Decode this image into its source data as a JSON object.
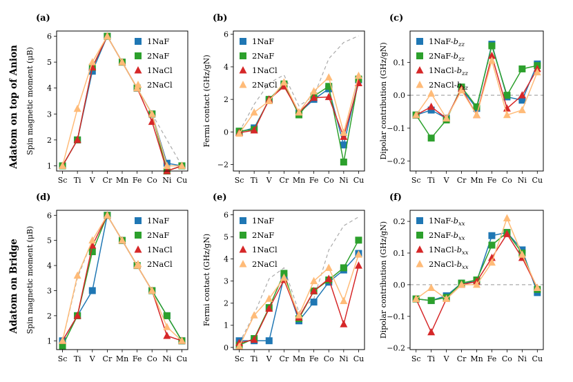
{
  "figure": {
    "row_labels": [
      "Adatom on top of Anion",
      "Adatom on Bridge"
    ],
    "colors": {
      "NaF1": "#1f77b4",
      "NaF2": "#2ca02c",
      "NaCl1": "#d62728",
      "NaCl2": "#ffbb78",
      "reference": "#aaaaaa"
    }
  },
  "chart_data": [
    {
      "id": "a",
      "panel_label": "(a)",
      "type": "line",
      "xlabel": "",
      "ylabel": "Spin magnetic moment (μB)",
      "ylim": [
        0.8,
        6.2
      ],
      "yticks": [
        1,
        2,
        3,
        4,
        5,
        6
      ],
      "ytick_labels": [
        "1",
        "2",
        "3",
        "4",
        "5",
        "6"
      ],
      "categories": [
        "Sc",
        "Ti",
        "V",
        "Cr",
        "Mn",
        "Fe",
        "Co",
        "Ni",
        "Cu"
      ],
      "legend": [
        "1NaF",
        "2NaF",
        "1NaCl",
        "2NaCl"
      ],
      "legend_position": "top-right",
      "reference": {
        "x": [
          6,
          7,
          8
        ],
        "values": [
          3.0,
          2.0,
          1.0
        ]
      },
      "series": [
        {
          "name": "1NaF",
          "marker": "square",
          "color": "#1f77b4",
          "values": [
            1.0,
            2.0,
            4.65,
            6.0,
            5.0,
            4.0,
            3.0,
            1.1,
            1.0
          ]
        },
        {
          "name": "2NaF",
          "marker": "square",
          "color": "#2ca02c",
          "values": [
            1.0,
            2.0,
            4.8,
            6.0,
            5.0,
            4.0,
            3.0,
            0.8,
            1.0
          ]
        },
        {
          "name": "1NaCl",
          "marker": "triangle",
          "color": "#d62728",
          "values": [
            1.0,
            2.0,
            4.8,
            6.0,
            5.0,
            4.0,
            2.7,
            0.8,
            1.0
          ]
        },
        {
          "name": "2NaCl",
          "marker": "triangle",
          "color": "#ffbb78",
          "values": [
            1.0,
            3.2,
            5.0,
            6.0,
            5.0,
            4.0,
            3.0,
            1.0,
            1.0
          ]
        }
      ]
    },
    {
      "id": "b",
      "panel_label": "(b)",
      "type": "line",
      "xlabel": "",
      "ylabel": "Fermi contact (GHz/gN)",
      "ylim": [
        -2.4,
        6.2
      ],
      "yticks": [
        -2,
        0,
        2,
        4,
        6
      ],
      "ytick_labels": [
        "−2",
        "0",
        "2",
        "4",
        "6"
      ],
      "categories": [
        "Sc",
        "Ti",
        "V",
        "Cr",
        "Mn",
        "Fe",
        "Co",
        "Ni",
        "Cu"
      ],
      "legend": [
        "1NaF",
        "2NaF",
        "1NaCl",
        "2NaCl"
      ],
      "legend_position": "top-left",
      "reference": {
        "x": [
          0,
          1,
          2,
          3,
          4,
          5,
          6,
          7,
          8
        ],
        "values": [
          0.0,
          1.7,
          3.0,
          3.5,
          1.6,
          2.2,
          4.5,
          5.5,
          5.9
        ]
      },
      "series": [
        {
          "name": "1NaF",
          "marker": "square",
          "color": "#1f77b4",
          "values": [
            0.0,
            0.25,
            1.95,
            2.9,
            1.15,
            2.0,
            2.65,
            -0.8,
            3.2
          ]
        },
        {
          "name": "2NaF",
          "marker": "square",
          "color": "#2ca02c",
          "values": [
            0.05,
            0.15,
            2.0,
            2.95,
            1.05,
            2.2,
            2.8,
            -1.85,
            3.25
          ]
        },
        {
          "name": "1NaCl",
          "marker": "triangle",
          "color": "#d62728",
          "values": [
            -0.05,
            0.1,
            2.0,
            2.8,
            1.2,
            2.1,
            2.15,
            -0.3,
            3.0
          ]
        },
        {
          "name": "2NaCl",
          "marker": "triangle",
          "color": "#ffbb78",
          "values": [
            -0.1,
            1.2,
            1.9,
            3.05,
            1.2,
            2.5,
            3.35,
            -0.05,
            3.45
          ]
        }
      ]
    },
    {
      "id": "c",
      "panel_label": "(c)",
      "type": "line",
      "xlabel": "",
      "ylabel": "Dipolar contribution (GHz/gN)",
      "ylim": [
        -0.23,
        0.195
      ],
      "yticks": [
        -0.2,
        -0.1,
        0.0,
        0.1
      ],
      "ytick_labels": [
        "−0.2",
        "−0.1",
        "0.0",
        "0.1"
      ],
      "categories": [
        "Sc",
        "Ti",
        "V",
        "Cr",
        "Mn",
        "Fe",
        "Co",
        "Ni",
        "Cu"
      ],
      "legend": [
        "1NaF-bzz",
        "2NaF-bzz",
        "1NaCl-bzz",
        "2NaCl-bzz"
      ],
      "legend_position": "top-left",
      "zero_line": true,
      "series": [
        {
          "name": "1NaF-bzz",
          "marker": "square",
          "color": "#1f77b4",
          "values": [
            -0.06,
            -0.045,
            -0.07,
            0.02,
            -0.04,
            0.155,
            -0.005,
            -0.015,
            0.095
          ]
        },
        {
          "name": "2NaF-bzz",
          "marker": "square",
          "color": "#2ca02c",
          "values": [
            -0.06,
            -0.13,
            -0.075,
            0.025,
            -0.035,
            0.15,
            0.0,
            0.08,
            0.09
          ]
        },
        {
          "name": "1NaCl-bzz",
          "marker": "triangle",
          "color": "#d62728",
          "values": [
            -0.06,
            -0.035,
            -0.07,
            0.02,
            -0.06,
            0.12,
            -0.04,
            0.0,
            0.08
          ]
        },
        {
          "name": "2NaCl-bzz",
          "marker": "triangle",
          "color": "#ffbb78",
          "values": [
            -0.06,
            0.005,
            -0.07,
            0.015,
            -0.06,
            0.105,
            -0.06,
            -0.045,
            0.07
          ]
        }
      ]
    },
    {
      "id": "d",
      "panel_label": "(d)",
      "type": "line",
      "xlabel": "",
      "ylabel": "Spin magnetic moment (μB)",
      "ylim": [
        0.65,
        6.2
      ],
      "yticks": [
        1,
        2,
        3,
        4,
        5,
        6
      ],
      "ytick_labels": [
        "1",
        "2",
        "3",
        "4",
        "5",
        "6"
      ],
      "categories": [
        "Sc",
        "Ti",
        "V",
        "Cr",
        "Mn",
        "Fe",
        "Co",
        "Ni",
        "Cu"
      ],
      "legend": [
        "1NaF",
        "2NaF",
        "1NaCl",
        "2NaCl"
      ],
      "legend_position": "top-right",
      "reference": {
        "x": [
          0,
          1,
          2,
          3
        ],
        "values": [
          1.0,
          3.5,
          5.0,
          6.0
        ]
      },
      "series": [
        {
          "name": "1NaF",
          "marker": "square",
          "color": "#1f77b4",
          "values": [
            1.0,
            2.0,
            3.0,
            6.0,
            5.0,
            4.0,
            3.0,
            2.0,
            1.0
          ]
        },
        {
          "name": "2NaF",
          "marker": "square",
          "color": "#2ca02c",
          "values": [
            0.8,
            2.0,
            4.55,
            6.0,
            5.0,
            4.0,
            3.0,
            2.0,
            1.0
          ]
        },
        {
          "name": "1NaCl",
          "marker": "triangle",
          "color": "#d62728",
          "values": [
            1.0,
            2.0,
            4.8,
            6.0,
            5.0,
            4.0,
            3.0,
            1.2,
            1.0
          ]
        },
        {
          "name": "2NaCl",
          "marker": "triangle",
          "color": "#ffbb78",
          "values": [
            1.0,
            3.6,
            5.0,
            6.0,
            5.0,
            4.0,
            3.0,
            1.55,
            1.0
          ]
        }
      ]
    },
    {
      "id": "e",
      "panel_label": "(e)",
      "type": "line",
      "xlabel": "",
      "ylabel": "Fermi contact (GHz/gN)",
      "ylim": [
        -0.1,
        6.2
      ],
      "yticks": [
        0,
        1,
        2,
        3,
        4,
        5,
        6
      ],
      "ytick_labels": [
        "0",
        "1",
        "2",
        "3",
        "4",
        "5",
        "6"
      ],
      "categories": [
        "Sc",
        "Ti",
        "V",
        "Cr",
        "Mn",
        "Fe",
        "Co",
        "Ni",
        "Cu"
      ],
      "legend": [
        "1NaF",
        "2NaF",
        "1NaCl",
        "2NaCl"
      ],
      "legend_position": "top-left",
      "reference": {
        "x": [
          0,
          1,
          2,
          3,
          4,
          5,
          6,
          7,
          8
        ],
        "values": [
          0.2,
          1.5,
          3.1,
          3.6,
          1.6,
          2.2,
          4.4,
          5.5,
          5.9
        ]
      },
      "series": [
        {
          "name": "1NaF",
          "marker": "square",
          "color": "#1f77b4",
          "values": [
            0.3,
            0.3,
            0.3,
            3.2,
            1.2,
            2.05,
            2.95,
            3.5,
            4.25
          ]
        },
        {
          "name": "2NaF",
          "marker": "square",
          "color": "#2ca02c",
          "values": [
            0.1,
            0.4,
            1.8,
            3.35,
            1.3,
            2.55,
            3.05,
            3.6,
            4.85
          ]
        },
        {
          "name": "1NaCl",
          "marker": "triangle",
          "color": "#d62728",
          "values": [
            0.2,
            0.35,
            1.75,
            3.05,
            1.35,
            2.55,
            3.1,
            1.05,
            3.7
          ]
        },
        {
          "name": "2NaCl",
          "marker": "triangle",
          "color": "#ffbb78",
          "values": [
            0.05,
            1.45,
            2.2,
            3.15,
            1.45,
            3.0,
            3.6,
            2.1,
            4.2
          ]
        }
      ]
    },
    {
      "id": "f",
      "panel_label": "(f)",
      "type": "line",
      "xlabel": "",
      "ylabel": "Dipolar contribution (GHz/gN)",
      "ylim": [
        -0.205,
        0.235
      ],
      "yticks": [
        -0.2,
        -0.1,
        0.0,
        0.1,
        0.2
      ],
      "ytick_labels": [
        "−0.2",
        "−0.1",
        "0.0",
        "0.1",
        "0.2"
      ],
      "categories": [
        "Sc",
        "Ti",
        "V",
        "Cr",
        "Mn",
        "Fe",
        "Co",
        "Ni",
        "Cu"
      ],
      "legend": [
        "1NaF-bxx",
        "2NaF-bxx",
        "1NaCl-bxx",
        "2NaCl-bxx"
      ],
      "legend_position": "top-left",
      "zero_line": true,
      "series": [
        {
          "name": "1NaF-bxx",
          "marker": "square",
          "color": "#1f77b4",
          "values": [
            -0.045,
            -0.05,
            -0.035,
            0.005,
            0.01,
            0.155,
            0.165,
            0.11,
            -0.025
          ]
        },
        {
          "name": "2NaF-bxx",
          "marker": "square",
          "color": "#2ca02c",
          "values": [
            -0.045,
            -0.05,
            -0.04,
            0.005,
            0.015,
            0.125,
            0.165,
            0.1,
            -0.015
          ]
        },
        {
          "name": "1NaCl-bxx",
          "marker": "triangle",
          "color": "#d62728",
          "values": [
            -0.045,
            -0.15,
            -0.045,
            0.0,
            0.01,
            0.085,
            0.16,
            0.085,
            -0.01
          ]
        },
        {
          "name": "2NaCl-bxx",
          "marker": "triangle",
          "color": "#ffbb78",
          "values": [
            -0.045,
            -0.01,
            -0.045,
            0.0,
            0.0,
            0.07,
            0.21,
            0.095,
            -0.01
          ]
        }
      ]
    }
  ]
}
